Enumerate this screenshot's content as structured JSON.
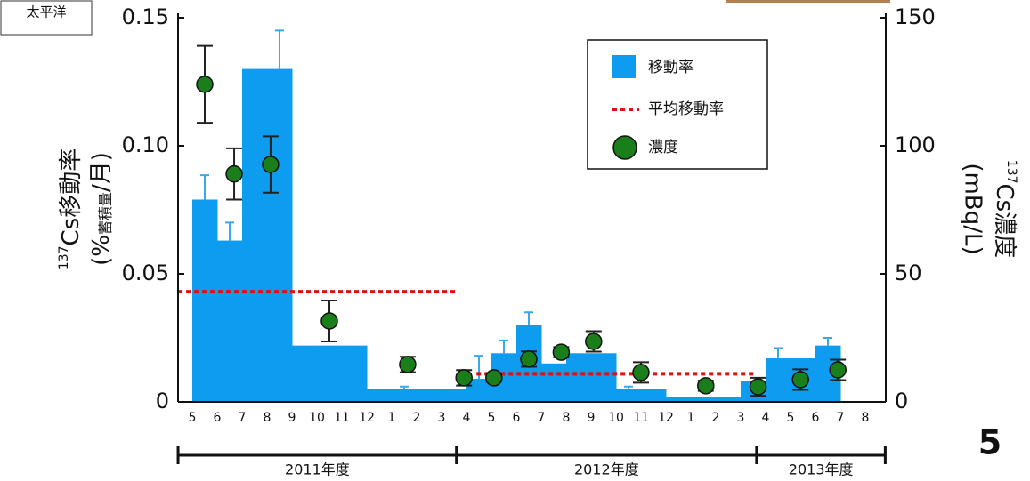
{
  "chart_data": {
    "type": "bar",
    "categories": [
      "5",
      "6",
      "7",
      "8",
      "9",
      "10",
      "11",
      "12",
      "1",
      "2",
      "3",
      "4",
      "5",
      "6",
      "7",
      "8",
      "9",
      "10",
      "11",
      "12",
      "1",
      "2",
      "3",
      "4",
      "5",
      "6",
      "7",
      "8"
    ],
    "series": [
      {
        "name": "移動率",
        "color": "#0d9cf0",
        "error_color": "#3aa8f0",
        "values": [
          0.079,
          0.063,
          0.13,
          0.13,
          0.022,
          0.022,
          0.022,
          0.005,
          0.005,
          0.005,
          0.005,
          0.009,
          0.019,
          0.03,
          0.015,
          0.019,
          0.019,
          0.005,
          0.005,
          0.002,
          0.002,
          0.002,
          0.008,
          0.017,
          0.017,
          0.022,
          null,
          null
        ],
        "errors": [
          0.0095,
          0.007,
          null,
          0.015,
          null,
          null,
          null,
          null,
          0.001,
          null,
          null,
          0.009,
          0.005,
          0.005,
          null,
          null,
          null,
          0.001,
          null,
          null,
          null,
          null,
          null,
          0.004,
          null,
          0.003,
          null,
          null
        ]
      },
      {
        "name": "平均移動率",
        "color": "#e01010",
        "segments": [
          {
            "x": [
              -0.57,
              10.6
            ],
            "value": 0.043
          },
          {
            "x": [
              11.4,
              22.6
            ],
            "value": 0.011
          }
        ]
      },
      {
        "name": "濃度",
        "color": "#1a7f1a",
        "axis": "y2",
        "x": [
          0.5,
          1.68,
          3.14,
          5.5,
          8.64,
          10.9,
          12.1,
          13.5,
          14.8,
          16.1,
          18.0,
          20.6,
          22.7,
          24.4,
          25.9
        ],
        "values": [
          124,
          89,
          92.7,
          31.6,
          14.6,
          9.4,
          9.4,
          16.7,
          19.4,
          23.6,
          11.5,
          6.3,
          5.9,
          8.7,
          12.5
        ],
        "errors": [
          15,
          10,
          11,
          8,
          3,
          3,
          1.5,
          3,
          2,
          4,
          4,
          2,
          3.5,
          4,
          4
        ]
      }
    ],
    "ylabel": {
      "sup": "137",
      "main": "Cs移動率",
      "open": "(%",
      "sub": "蓄積量",
      "close": "/月)"
    },
    "y2label": {
      "sup": "137",
      "main": "Cs濃度",
      "unit": "(mBq/L)"
    },
    "ylim": [
      0,
      0.15
    ],
    "yticks": [
      0,
      0.05,
      {
        "value": 0.1,
        "label": "0.10"
      },
      0.15
    ],
    "y2lim": [
      0,
      150
    ],
    "y2ticks": [
      0,
      50,
      100,
      150
    ],
    "periods": [
      {
        "label": "2011年度",
        "range": [
          -0.57,
          10.6
        ]
      },
      {
        "label": "2012年度",
        "range": [
          10.6,
          22.64
        ]
      },
      {
        "label": "2013年度",
        "range": [
          22.64,
          27.8
        ]
      }
    ],
    "legend": "top-right"
  },
  "note": "太平洋",
  "page_number": "5"
}
